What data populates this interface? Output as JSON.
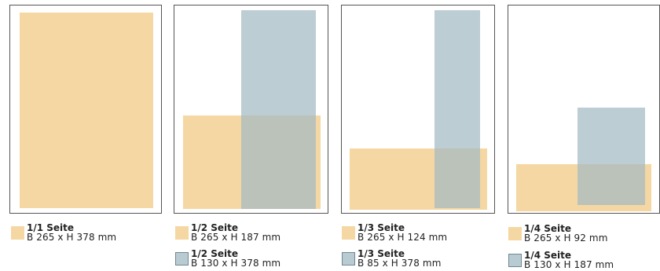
{
  "colors": {
    "beige": "#f5d7a3",
    "blue": "#a3bac3",
    "frame": "#555555"
  },
  "formats": [
    {
      "legend": [
        {
          "color": "beige",
          "title": "1/1 Seite",
          "dims": "B 265 x H 378 mm"
        }
      ]
    },
    {
      "legend": [
        {
          "color": "beige",
          "title": "1/2 Seite",
          "dims": "B 265 x H 187 mm"
        },
        {
          "color": "blue",
          "title": "1/2 Seite",
          "dims": "B 130 x H 378 mm"
        }
      ]
    },
    {
      "legend": [
        {
          "color": "beige",
          "title": "1/3 Seite",
          "dims": "B 265 x H 124 mm"
        },
        {
          "color": "blue",
          "title": "1/3 Seite",
          "dims": "B 85 x H 378 mm"
        }
      ]
    },
    {
      "legend": [
        {
          "color": "beige",
          "title": "1/4 Seite",
          "dims": "B 265 x H 92 mm"
        },
        {
          "color": "blue",
          "title": "1/4 Seite",
          "dims": "B 130 x H 187 mm"
        }
      ]
    }
  ]
}
